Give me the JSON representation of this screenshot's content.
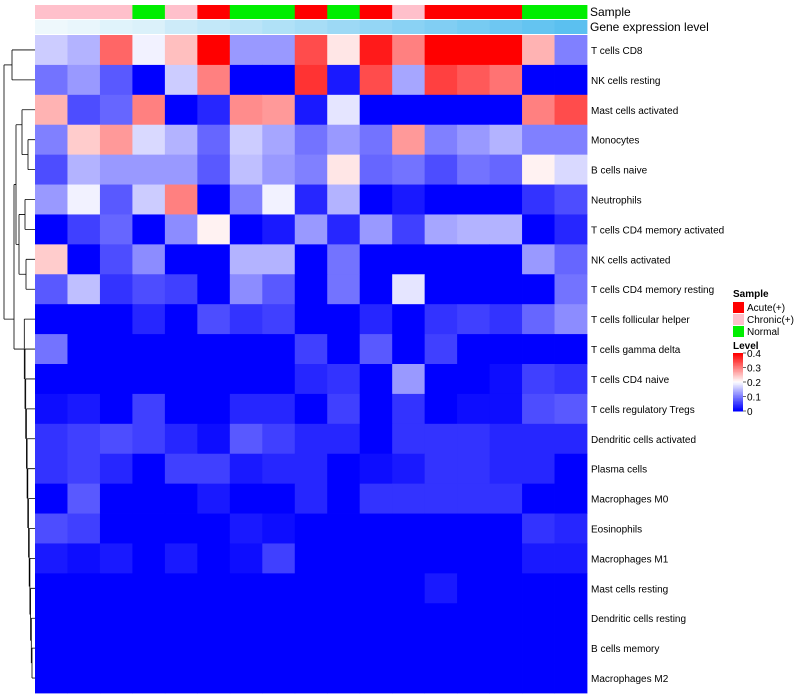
{
  "chart_data": {
    "type": "heatmap",
    "annotation_labels": [
      "Sample",
      "Gene expression level"
    ],
    "columns": [
      {
        "sample": "Chronic(+)",
        "gene_level": 0.05
      },
      {
        "sample": "Chronic(+)",
        "gene_level": 0.06
      },
      {
        "sample": "Chronic(+)",
        "gene_level": 0.08
      },
      {
        "sample": "Normal",
        "gene_level": 0.09
      },
      {
        "sample": "Chronic(+)",
        "gene_level": 0.12
      },
      {
        "sample": "Acute(+)",
        "gene_level": 0.14
      },
      {
        "sample": "Normal",
        "gene_level": 0.16
      },
      {
        "sample": "Normal",
        "gene_level": 0.18
      },
      {
        "sample": "Acute(+)",
        "gene_level": 0.2
      },
      {
        "sample": "Normal",
        "gene_level": 0.22
      },
      {
        "sample": "Acute(+)",
        "gene_level": 0.24
      },
      {
        "sample": "Chronic(+)",
        "gene_level": 0.26
      },
      {
        "sample": "Acute(+)",
        "gene_level": 0.28
      },
      {
        "sample": "Acute(+)",
        "gene_level": 0.3
      },
      {
        "sample": "Acute(+)",
        "gene_level": 0.32
      },
      {
        "sample": "Normal",
        "gene_level": 0.34
      },
      {
        "sample": "Normal",
        "gene_level": 0.36
      }
    ],
    "rows": [
      "T cells CD8",
      "NK cells resting",
      "Mast cells activated",
      "Monocytes",
      "B cells naive",
      "Neutrophils",
      "T cells CD4 memory activated",
      "NK cells activated",
      "T cells CD4 memory resting",
      "T cells follicular helper",
      "T cells gamma delta",
      "T cells CD4 naive",
      "T cells regulatory  Tregs",
      "Dendritic cells activated",
      "Plasma cells",
      "Macrophages M0",
      "Eosinophils",
      "Macrophages M1",
      "Mast cells resting",
      "Dendritic cells resting",
      "B cells memory",
      "Macrophages M2"
    ],
    "values": [
      [
        0.16,
        0.14,
        0.32,
        0.19,
        0.25,
        0.4,
        0.12,
        0.12,
        0.34,
        0.22,
        0.38,
        0.3,
        0.4,
        0.4,
        0.4,
        0.26,
        0.1
      ],
      [
        0.09,
        0.12,
        0.07,
        0.0,
        0.16,
        0.3,
        0.0,
        0.0,
        0.36,
        0.02,
        0.34,
        0.13,
        0.35,
        0.33,
        0.31,
        0.0,
        0.0
      ],
      [
        0.26,
        0.06,
        0.08,
        0.3,
        0.0,
        0.03,
        0.29,
        0.28,
        0.02,
        0.18,
        0.0,
        0.0,
        0.0,
        0.0,
        0.0,
        0.3,
        0.34
      ],
      [
        0.1,
        0.24,
        0.28,
        0.17,
        0.14,
        0.08,
        0.16,
        0.13,
        0.09,
        0.12,
        0.09,
        0.28,
        0.1,
        0.12,
        0.14,
        0.1,
        0.1
      ],
      [
        0.06,
        0.14,
        0.12,
        0.12,
        0.12,
        0.07,
        0.15,
        0.12,
        0.1,
        0.22,
        0.08,
        0.09,
        0.06,
        0.09,
        0.08,
        0.21,
        0.17
      ],
      [
        0.12,
        0.19,
        0.07,
        0.16,
        0.3,
        0.0,
        0.1,
        0.19,
        0.03,
        0.14,
        0.0,
        0.02,
        0.0,
        0.0,
        0.0,
        0.04,
        0.06
      ],
      [
        0.0,
        0.05,
        0.08,
        0.0,
        0.11,
        0.21,
        0.0,
        0.02,
        0.12,
        0.03,
        0.12,
        0.05,
        0.13,
        0.14,
        0.14,
        0.0,
        0.03
      ],
      [
        0.24,
        0.0,
        0.06,
        0.11,
        0.0,
        0.0,
        0.14,
        0.14,
        0.0,
        0.09,
        0.0,
        0.0,
        0.0,
        0.0,
        0.0,
        0.12,
        0.08
      ],
      [
        0.07,
        0.15,
        0.04,
        0.06,
        0.05,
        0.0,
        0.11,
        0.07,
        0.0,
        0.09,
        0.0,
        0.18,
        0.0,
        0.0,
        0.0,
        0.0,
        0.09
      ],
      [
        0.0,
        0.0,
        0.0,
        0.03,
        0.0,
        0.06,
        0.04,
        0.05,
        0.0,
        0.0,
        0.03,
        0.0,
        0.04,
        0.05,
        0.04,
        0.08,
        0.11
      ],
      [
        0.09,
        0.0,
        0.0,
        0.0,
        0.0,
        0.0,
        0.0,
        0.0,
        0.05,
        0.0,
        0.07,
        0.0,
        0.05,
        0.0,
        0.0,
        0.0,
        0.0
      ],
      [
        0.0,
        0.0,
        0.0,
        0.0,
        0.0,
        0.0,
        0.0,
        0.0,
        0.03,
        0.04,
        0.0,
        0.12,
        0.0,
        0.0,
        0.01,
        0.05,
        0.04
      ],
      [
        0.01,
        0.02,
        0.0,
        0.05,
        0.0,
        0.0,
        0.03,
        0.03,
        0.0,
        0.05,
        0.0,
        0.04,
        0.0,
        0.01,
        0.01,
        0.06,
        0.07
      ],
      [
        0.04,
        0.05,
        0.06,
        0.05,
        0.03,
        0.01,
        0.07,
        0.05,
        0.03,
        0.03,
        0.0,
        0.04,
        0.04,
        0.04,
        0.03,
        0.03,
        0.03
      ],
      [
        0.04,
        0.05,
        0.03,
        0.0,
        0.05,
        0.05,
        0.02,
        0.03,
        0.03,
        0.0,
        0.01,
        0.02,
        0.04,
        0.04,
        0.03,
        0.03,
        0.0
      ],
      [
        0.0,
        0.07,
        0.0,
        0.0,
        0.0,
        0.02,
        0.0,
        0.0,
        0.03,
        0.0,
        0.04,
        0.04,
        0.04,
        0.04,
        0.04,
        0.0,
        0.0
      ],
      [
        0.06,
        0.05,
        0.0,
        0.0,
        0.0,
        0.0,
        0.02,
        0.01,
        0.0,
        0.0,
        0.0,
        0.0,
        0.0,
        0.0,
        0.0,
        0.04,
        0.03
      ],
      [
        0.02,
        0.01,
        0.02,
        0.0,
        0.02,
        0.0,
        0.01,
        0.05,
        0.0,
        0.0,
        0.0,
        0.0,
        0.0,
        0.0,
        0.0,
        0.02,
        0.02
      ],
      [
        0.0,
        0.0,
        0.0,
        0.0,
        0.0,
        0.0,
        0.0,
        0.0,
        0.0,
        0.0,
        0.0,
        0.0,
        0.02,
        0.0,
        0.0,
        0.0,
        0.0
      ],
      [
        0.0,
        0.0,
        0.0,
        0.0,
        0.0,
        0.0,
        0.0,
        0.0,
        0.0,
        0.0,
        0.0,
        0.0,
        0.0,
        0.0,
        0.0,
        0.0,
        0.0
      ],
      [
        0.0,
        0.0,
        0.0,
        0.0,
        0.0,
        0.0,
        0.0,
        0.0,
        0.0,
        0.0,
        0.0,
        0.0,
        0.0,
        0.0,
        0.0,
        0.0,
        0.0
      ],
      [
        0.0,
        0.0,
        0.0,
        0.0,
        0.0,
        0.0,
        0.0,
        0.0,
        0.0,
        0.0,
        0.0,
        0.0,
        0.0,
        0.0,
        0.0,
        0.0,
        0.0
      ]
    ],
    "color_scale": {
      "min": 0,
      "mid": 0.2,
      "max": 0.4,
      "low_color": "#0000ff",
      "mid_color": "#ffffff",
      "high_color": "#ff0000"
    },
    "gene_level_colors": {
      "low": "#eef8fc",
      "high": "#5bc0f0"
    },
    "legend": {
      "sample_title": "Sample",
      "sample_entries": [
        {
          "label": "Acute(+)",
          "color": "#ff0000"
        },
        {
          "label": "Chronic(+)",
          "color": "#ffc0cb"
        },
        {
          "label": "Normal",
          "color": "#00ee00"
        }
      ],
      "level_title": "Level",
      "level_ticks": [
        "0.4",
        "0.3",
        "0.2",
        "0.1",
        "0"
      ],
      "position": "right"
    }
  }
}
